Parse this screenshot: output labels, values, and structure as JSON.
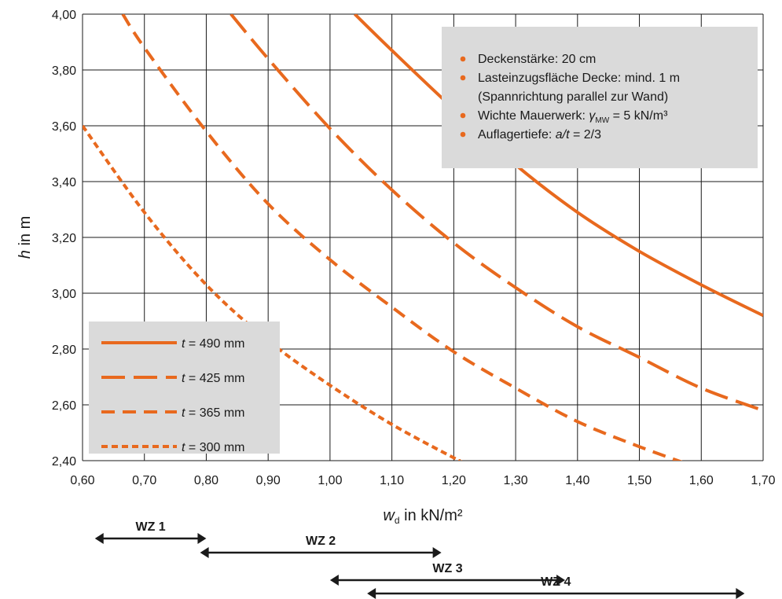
{
  "colors": {
    "accent": "#E8691E",
    "grid": "#1a1a1a",
    "box": "#DADADA"
  },
  "chart_data": {
    "type": "line",
    "xlabel": {
      "var": "w",
      "sub": "d",
      "unit": " in kN/m²"
    },
    "ylabel": {
      "var": "h",
      "unit": " in m"
    },
    "xlim": [
      0.6,
      1.7
    ],
    "ylim": [
      2.4,
      4.0
    ],
    "xticks": [
      "0,60",
      "0,70",
      "0,80",
      "0,90",
      "1,00",
      "1,10",
      "1,20",
      "1,30",
      "1,40",
      "1,50",
      "1,60",
      "1,70"
    ],
    "yticks": [
      "2,40",
      "2,60",
      "2,80",
      "3,00",
      "3,20",
      "3,40",
      "3,60",
      "3,80",
      "4,00"
    ],
    "grid": true,
    "series": [
      {
        "name": "t = 490 mm",
        "label_var": "t",
        "label_rest": " = 490 mm",
        "dash": "solid",
        "x": [
          1.04,
          1.1,
          1.2,
          1.3,
          1.4,
          1.5,
          1.6,
          1.7
        ],
        "y": [
          4.0,
          3.87,
          3.66,
          3.46,
          3.29,
          3.15,
          3.03,
          2.92
        ]
      },
      {
        "name": "t = 425 mm",
        "label_var": "t",
        "label_rest": " = 425 mm",
        "dash": "long",
        "x": [
          0.84,
          0.9,
          1.0,
          1.1,
          1.2,
          1.3,
          1.4,
          1.5,
          1.6,
          1.7
        ],
        "y": [
          4.0,
          3.84,
          3.59,
          3.37,
          3.18,
          3.02,
          2.88,
          2.77,
          2.66,
          2.58
        ]
      },
      {
        "name": "t = 365 mm",
        "label_var": "t",
        "label_rest": " = 365 mm",
        "dash": "medium",
        "x": [
          0.665,
          0.7,
          0.8,
          0.9,
          1.0,
          1.1,
          1.2,
          1.3,
          1.4,
          1.5,
          1.575
        ],
        "y": [
          4.0,
          3.88,
          3.58,
          3.32,
          3.12,
          2.95,
          2.79,
          2.66,
          2.54,
          2.45,
          2.39
        ]
      },
      {
        "name": "t = 300 mm",
        "label_var": "t",
        "label_rest": " = 300 mm",
        "dash": "short",
        "x": [
          0.6,
          0.7,
          0.8,
          0.9,
          1.0,
          1.1,
          1.2,
          1.21
        ],
        "y": [
          3.6,
          3.29,
          3.03,
          2.83,
          2.67,
          2.53,
          2.41,
          2.4
        ]
      }
    ],
    "annotations": [
      {
        "type": "plain",
        "text": "Deckenstärke: 20 cm",
        "bullet": true
      },
      {
        "type": "plain",
        "text": "Lasteinzugsfläche Decke: mind. 1 m",
        "bullet": true
      },
      {
        "type": "plain",
        "text": "(Spannrichtung parallel zur Wand)",
        "bullet": false
      },
      {
        "type": "gamma",
        "prefix": "Wichte Mauerwerk: ",
        "var": "γ",
        "sub": "MW",
        "suffix": " = 5 kN/m³",
        "bullet": true
      },
      {
        "type": "ratio",
        "prefix": "Auflagertiefe: ",
        "var": "a/t",
        "suffix": " = 2/3",
        "bullet": true
      }
    ],
    "wind_zones": [
      {
        "label": "WZ 1",
        "from": 0.62,
        "to": 0.8
      },
      {
        "label": "WZ 2",
        "from": 0.79,
        "to": 1.18
      },
      {
        "label": "WZ 3",
        "from": 1.0,
        "to": 1.38
      },
      {
        "label": "WZ 4",
        "from": 1.06,
        "to": 1.67
      }
    ]
  }
}
